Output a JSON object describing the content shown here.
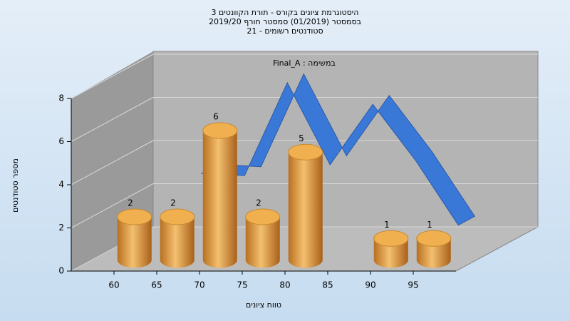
{
  "chart_data": {
    "type": "bar3d",
    "title": [
      "היסטוגרמת ציונים בקורס - תורת הקוונטים 3",
      "בסמסטר  (01/2019)  סמסטר חורף 2019/20",
      "סטודנטים רשומים - 21"
    ],
    "annotation": "Final_A : במשימה",
    "x_label": "טווח ציונים",
    "y_label": "מספר סטודנטים",
    "categories": [
      "60",
      "65",
      "70",
      "75",
      "80",
      "85",
      "90",
      "95"
    ],
    "series": [
      {
        "values": [
          2,
          2,
          6,
          2,
          5,
          0,
          1,
          1
        ],
        "color": "#e0a040"
      },
      {
        "values": [
          null,
          3.4,
          3.3,
          7.6,
          3.8,
          6.6,
          4.0,
          1.0
        ],
        "color": "#3a78d8"
      }
    ],
    "ylim": [
      0,
      8
    ],
    "yticks": [
      0,
      2,
      4,
      6,
      8
    ],
    "grid": true
  }
}
